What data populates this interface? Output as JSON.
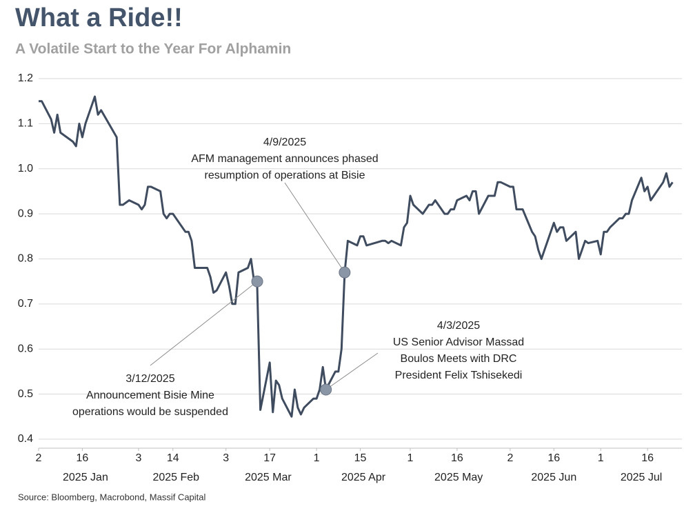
{
  "chart_data": {
    "type": "line",
    "title": "What a Ride!!",
    "subtitle": "A Volatile Start to the Year For Alphamin",
    "source": "Source: Bloomberg, Macrobond, Massif Capital",
    "color": "#3f4b5e",
    "grid": true,
    "x": [
      "2025-01-02",
      "2025-01-03",
      "2025-01-06",
      "2025-01-07",
      "2025-01-08",
      "2025-01-09",
      "2025-01-13",
      "2025-01-14",
      "2025-01-15",
      "2025-01-16",
      "2025-01-17",
      "2025-01-20",
      "2025-01-21",
      "2025-01-22",
      "2025-01-27",
      "2025-01-28",
      "2025-01-29",
      "2025-01-31",
      "2025-02-03",
      "2025-02-04",
      "2025-02-05",
      "2025-02-06",
      "2025-02-07",
      "2025-02-10",
      "2025-02-11",
      "2025-02-12",
      "2025-02-13",
      "2025-02-14",
      "2025-02-18",
      "2025-02-19",
      "2025-02-20",
      "2025-02-21",
      "2025-02-24",
      "2025-02-25",
      "2025-02-26",
      "2025-02-27",
      "2025-02-28",
      "2025-03-03",
      "2025-03-04",
      "2025-03-05",
      "2025-03-06",
      "2025-03-07",
      "2025-03-10",
      "2025-03-11",
      "2025-03-12",
      "2025-03-13",
      "2025-03-14",
      "2025-03-17",
      "2025-03-18",
      "2025-03-19",
      "2025-03-20",
      "2025-03-21",
      "2025-03-24",
      "2025-03-25",
      "2025-03-26",
      "2025-03-27",
      "2025-03-28",
      "2025-03-31",
      "2025-04-01",
      "2025-04-02",
      "2025-04-03",
      "2025-04-04",
      "2025-04-07",
      "2025-04-08",
      "2025-04-09",
      "2025-04-10",
      "2025-04-11",
      "2025-04-14",
      "2025-04-15",
      "2025-04-16",
      "2025-04-17",
      "2025-04-22",
      "2025-04-23",
      "2025-04-24",
      "2025-04-25",
      "2025-04-28",
      "2025-04-29",
      "2025-04-30",
      "2025-05-01",
      "2025-05-02",
      "2025-05-05",
      "2025-05-07",
      "2025-05-08",
      "2025-05-09",
      "2025-05-12",
      "2025-05-13",
      "2025-05-14",
      "2025-05-15",
      "2025-05-16",
      "2025-05-19",
      "2025-05-20",
      "2025-05-21",
      "2025-05-22",
      "2025-05-23",
      "2025-05-26",
      "2025-05-27",
      "2025-05-28",
      "2025-05-29",
      "2025-05-30",
      "2025-06-02",
      "2025-06-03",
      "2025-06-04",
      "2025-06-06",
      "2025-06-09",
      "2025-06-10",
      "2025-06-11",
      "2025-06-12",
      "2025-06-13",
      "2025-06-16",
      "2025-06-17",
      "2025-06-18",
      "2025-06-19",
      "2025-06-20",
      "2025-06-23",
      "2025-06-24",
      "2025-06-25",
      "2025-06-26",
      "2025-06-27",
      "2025-06-30",
      "2025-07-01",
      "2025-07-02",
      "2025-07-03",
      "2025-07-04",
      "2025-07-07",
      "2025-07-08",
      "2025-07-09",
      "2025-07-10",
      "2025-07-11",
      "2025-07-14",
      "2025-07-15",
      "2025-07-16",
      "2025-07-17",
      "2025-07-18",
      "2025-07-21",
      "2025-07-22",
      "2025-07-23",
      "2025-07-24"
    ],
    "values": [
      1.15,
      1.15,
      1.11,
      1.08,
      1.12,
      1.08,
      1.06,
      1.05,
      1.1,
      1.07,
      1.1,
      1.16,
      1.12,
      1.13,
      1.07,
      0.92,
      0.92,
      0.93,
      0.92,
      0.91,
      0.92,
      0.96,
      0.96,
      0.95,
      0.9,
      0.89,
      0.9,
      0.9,
      0.86,
      0.86,
      0.84,
      0.78,
      0.78,
      0.78,
      0.76,
      0.725,
      0.73,
      0.77,
      0.74,
      0.7,
      0.7,
      0.77,
      0.78,
      0.8,
      0.75,
      0.74,
      0.465,
      0.57,
      0.46,
      0.53,
      0.52,
      0.49,
      0.45,
      0.51,
      0.47,
      0.455,
      0.47,
      0.49,
      0.49,
      0.51,
      0.56,
      0.51,
      0.55,
      0.55,
      0.6,
      0.77,
      0.84,
      0.83,
      0.85,
      0.85,
      0.83,
      0.84,
      0.84,
      0.835,
      0.84,
      0.83,
      0.87,
      0.88,
      0.94,
      0.92,
      0.9,
      0.92,
      0.92,
      0.93,
      0.9,
      0.9,
      0.91,
      0.91,
      0.93,
      0.94,
      0.93,
      0.95,
      0.95,
      0.9,
      0.94,
      0.94,
      0.94,
      0.97,
      0.97,
      0.96,
      0.96,
      0.91,
      0.91,
      0.86,
      0.85,
      0.82,
      0.8,
      0.82,
      0.88,
      0.86,
      0.87,
      0.87,
      0.84,
      0.86,
      0.8,
      0.82,
      0.84,
      0.835,
      0.84,
      0.81,
      0.86,
      0.86,
      0.87,
      0.89,
      0.89,
      0.9,
      0.9,
      0.93,
      0.98,
      0.95,
      0.96,
      0.93,
      0.94,
      0.97,
      0.99,
      0.96,
      0.97
    ],
    "xlim": [
      "2025-01-02",
      "2025-07-27"
    ],
    "xticks": [
      {
        "value": "2025-01-02",
        "label": "2"
      },
      {
        "value": "2025-01-16",
        "label": "16"
      },
      {
        "value": "2025-02-03",
        "label": "3"
      },
      {
        "value": "2025-02-14",
        "label": "14"
      },
      {
        "value": "2025-03-03",
        "label": "3"
      },
      {
        "value": "2025-03-17",
        "label": "17"
      },
      {
        "value": "2025-04-01",
        "label": "1"
      },
      {
        "value": "2025-04-15",
        "label": "15"
      },
      {
        "value": "2025-05-01",
        "label": "1"
      },
      {
        "value": "2025-05-16",
        "label": "16"
      },
      {
        "value": "2025-06-02",
        "label": "2"
      },
      {
        "value": "2025-06-16",
        "label": "16"
      },
      {
        "value": "2025-07-01",
        "label": "1"
      },
      {
        "value": "2025-07-16",
        "label": "16"
      }
    ],
    "months": [
      {
        "value": "2025-01",
        "label": "2025 Jan"
      },
      {
        "value": "2025-02",
        "label": "2025 Feb"
      },
      {
        "value": "2025-03",
        "label": "2025 Mar"
      },
      {
        "value": "2025-04",
        "label": "2025 Apr"
      },
      {
        "value": "2025-05",
        "label": "2025 May"
      },
      {
        "value": "2025-06",
        "label": "2025 Jun"
      },
      {
        "value": "2025-07",
        "label": "2025 Jul"
      }
    ],
    "ylim": [
      0.38,
      1.2
    ],
    "yticks": [
      0.4,
      0.5,
      0.6,
      0.7,
      0.8,
      0.9,
      {
        "value": 1,
        "label": "1.0"
      },
      1.1,
      1.2
    ],
    "annotations": [
      {
        "x": "2025-03-13",
        "y": 0.75,
        "lines": [
          "3/12/2025",
          "Announcement Bisie Mine",
          "operations would be suspended"
        ]
      },
      {
        "x": "2025-04-10",
        "y": 0.77,
        "lines": [
          "4/9/2025",
          "AFM management announces phased",
          "resumption of operations at Bisie"
        ]
      },
      {
        "x": "2025-04-04",
        "y": 0.51,
        "lines": [
          "4/3/2025",
          "US Senior Advisor Massad",
          "Boulos Meets with DRC",
          "President Felix Tshisekedi"
        ]
      }
    ]
  }
}
